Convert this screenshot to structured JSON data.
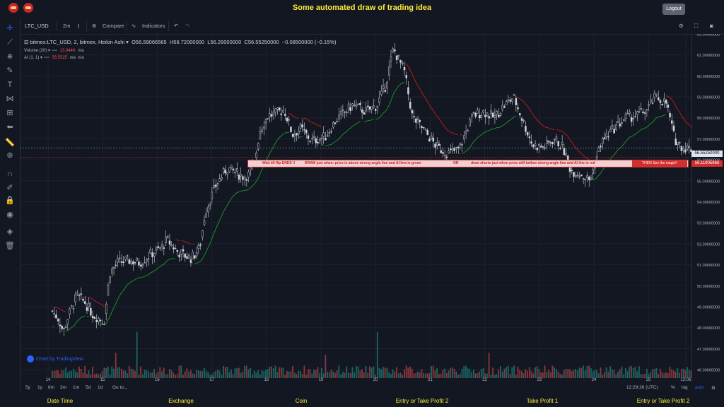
{
  "header": {
    "title": "Some automated draw of trading idea",
    "logout_label": "Logout"
  },
  "toolbar": {
    "symbol": "LTC_USD",
    "interval": "2m",
    "compare_label": "Compare",
    "indicators_label": "Indicators"
  },
  "legend": {
    "main_title": "bitmex:LTC_USD, 2, bitmex, Heikin Ashi",
    "open": "O56.59066565",
    "high": "H56.72000000",
    "low": "L56.26000000",
    "close": "C56.55250000",
    "change": "−0.08500000 (−0.15%)",
    "volume_label": "Volume (20)",
    "volume_value": "13.944K",
    "volume_na": "n/a",
    "ai_label": "AI (1, 1)",
    "ai_value": "56.5525",
    "ai_na1": "n/a",
    "ai_na2": "n/a"
  },
  "banner": {
    "part1": "Wait till flip ENDS !!",
    "part2": "DRAW just when:  price is above strong angle line and AI line is green",
    "part3": "OR",
    "part4": "draw shorts just when price still bellow strong angle line and AI line is red",
    "then": "THEN See the magic!!"
  },
  "price_tags": {
    "current": "56.55250000",
    "red": "56.11905966"
  },
  "watermark": "Chart by TradingView",
  "bottom": {
    "ranges": [
      "5y",
      "1y",
      "6m",
      "3m",
      "1m",
      "5d",
      "1d"
    ],
    "goto": "Go to...",
    "time": "12:29:26 (UTC)",
    "percent": "%",
    "log": "log",
    "auto": "auto"
  },
  "columns": [
    "Date Time",
    "Exchange",
    "Coin",
    "Entry or Take Profit 2",
    "Take Profit 1",
    "Entry or Take Profit 2"
  ],
  "colors": {
    "bg": "#131722",
    "accent": "#ffeb3b",
    "up": "#26a69a",
    "down": "#ef5350",
    "ai_green": "#1b8f2a",
    "ai_red": "#b71c1c"
  },
  "chart_data": {
    "type": "candlestick",
    "x_ticks": [
      "14",
      "15",
      "16",
      "17",
      "18",
      "19",
      "20",
      "21",
      "22",
      "23",
      "24",
      "25",
      "12:06"
    ],
    "y_ticks": [
      "62.00000000",
      "61.00000000",
      "60.00000000",
      "59.00000000",
      "58.00000000",
      "57.00000000",
      "56.00000000",
      "55.00000000",
      "54.00000000",
      "53.00000000",
      "52.00000000",
      "51.00000000",
      "50.00000000",
      "49.00000000",
      "48.00000000",
      "47.00000000",
      "46.00000000"
    ],
    "ylim": [
      45.6,
      62.2
    ],
    "price_path": [
      [
        0,
        48.8
      ],
      [
        0.12,
        48.4
      ],
      [
        0.2,
        47.8
      ],
      [
        0.3,
        48.6
      ],
      [
        0.45,
        49.5
      ],
      [
        0.6,
        49.2
      ],
      [
        0.75,
        48.6
      ],
      [
        0.95,
        48.3
      ],
      [
        1.05,
        50.6
      ],
      [
        1.2,
        51.1
      ],
      [
        1.4,
        51.2
      ],
      [
        1.6,
        51.1
      ],
      [
        1.8,
        51.5
      ],
      [
        2.0,
        51.8
      ],
      [
        2.1,
        52.2
      ],
      [
        2.3,
        51.6
      ],
      [
        2.55,
        51.3
      ],
      [
        2.7,
        51.8
      ],
      [
        2.8,
        53.5
      ],
      [
        3.0,
        54.8
      ],
      [
        3.2,
        55.6
      ],
      [
        3.35,
        55.4
      ],
      [
        3.5,
        55.2
      ],
      [
        3.6,
        55.3
      ],
      [
        3.7,
        55.8
      ],
      [
        3.8,
        57.4
      ],
      [
        3.95,
        58.1
      ],
      [
        4.1,
        58.2
      ],
      [
        4.25,
        58.4
      ],
      [
        4.4,
        57.2
      ],
      [
        4.55,
        57.5
      ],
      [
        4.75,
        56.9
      ],
      [
        5.0,
        57.1
      ],
      [
        5.2,
        57.9
      ],
      [
        5.5,
        58.6
      ],
      [
        5.75,
        58.3
      ],
      [
        5.95,
        58.6
      ],
      [
        6.1,
        59.5
      ],
      [
        6.25,
        61.3
      ],
      [
        6.45,
        60.2
      ],
      [
        6.6,
        58.0
      ],
      [
        6.75,
        57.6
      ],
      [
        6.9,
        57.1
      ],
      [
        7.05,
        56.6
      ],
      [
        7.25,
        56.3
      ],
      [
        7.45,
        56.5
      ],
      [
        7.7,
        58.1
      ],
      [
        7.9,
        58.3
      ],
      [
        8.1,
        58.0
      ],
      [
        8.25,
        58.5
      ],
      [
        8.45,
        59.0
      ],
      [
        8.6,
        58.0
      ],
      [
        8.8,
        56.7
      ],
      [
        9.0,
        56.6
      ],
      [
        9.2,
        57.0
      ],
      [
        9.35,
        56.6
      ],
      [
        9.5,
        55.5
      ],
      [
        9.7,
        55.3
      ],
      [
        9.85,
        55.0
      ],
      [
        10.05,
        56.8
      ],
      [
        10.25,
        57.4
      ],
      [
        10.5,
        58.0
      ],
      [
        10.7,
        58.1
      ],
      [
        10.9,
        58.4
      ],
      [
        11.05,
        59.0
      ],
      [
        11.25,
        58.7
      ],
      [
        11.4,
        57.0
      ],
      [
        11.55,
        56.6
      ],
      [
        11.75,
        56.5
      ],
      [
        11.9,
        56.55
      ]
    ],
    "volume_spikes": [
      [
        1.15,
        46.8
      ],
      [
        1.55,
        47.8
      ],
      [
        5.95,
        47.8
      ],
      [
        8.0,
        46.8
      ],
      [
        5.0,
        46.7
      ]
    ]
  }
}
